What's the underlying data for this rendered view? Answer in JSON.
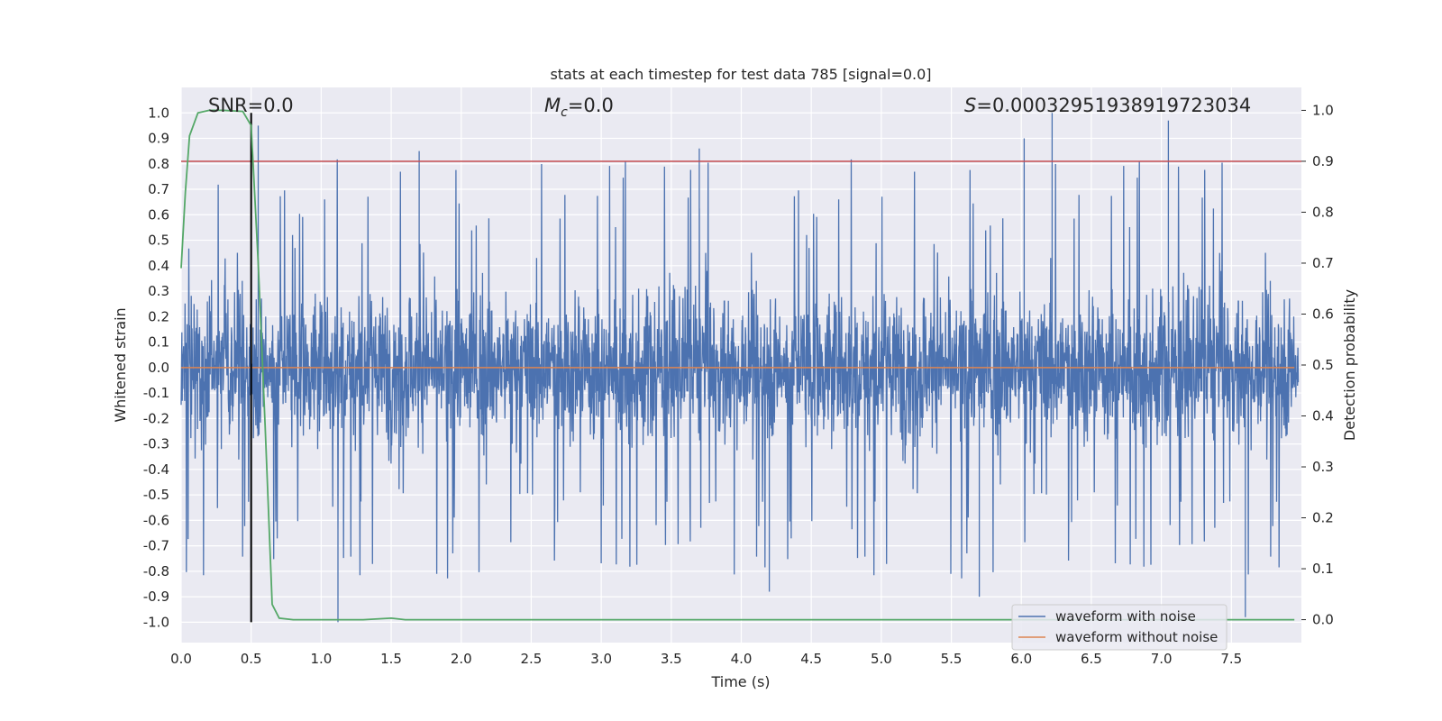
{
  "chart_data": {
    "type": "line",
    "title": "stats at each timestep for test data 785 [signal=0.0]",
    "xlabel": "Time (s)",
    "ylabel": "Whitened strain",
    "ylabel_right": "Detection probability",
    "xlim": [
      0.0,
      8.0
    ],
    "ylim": [
      -1.08,
      1.1
    ],
    "ylim_right": [
      -0.045,
      1.045
    ],
    "grid": true,
    "legend_position": "bottom-right",
    "x_ticks": [
      "0.0",
      "0.5",
      "1.0",
      "1.5",
      "2.0",
      "2.5",
      "3.0",
      "3.5",
      "4.0",
      "4.5",
      "5.0",
      "5.5",
      "6.0",
      "6.5",
      "7.0",
      "7.5"
    ],
    "y_ticks": [
      "1.0",
      "0.9",
      "0.8",
      "0.7",
      "0.6",
      "0.5",
      "0.4",
      "0.3",
      "0.2",
      "0.1",
      "0.0",
      "-0.1",
      "-0.2",
      "-0.3",
      "-0.4",
      "-0.5",
      "-0.6",
      "-0.7",
      "-0.8",
      "-0.9",
      "-1.0"
    ],
    "y_ticks_right": [
      "1.0",
      "0.9",
      "0.8",
      "0.7",
      "0.6",
      "0.5",
      "0.4",
      "0.3",
      "0.2",
      "0.1",
      "0.0"
    ],
    "annotations": {
      "snr": "SNR=0.0",
      "mc_symbol": "M",
      "mc_subscript": "c",
      "mc_value": "=0.0",
      "s_symbol": "S",
      "s_value": "=0.0003295193891972303​4"
    },
    "series": [
      {
        "name": "waveform with noise",
        "axis": "left",
        "color": "#4c72b0",
        "description": "dense whitened noise, amplitude mostly within ±0.4 with spikes reaching about ±1.0",
        "envelope_peaks_upper": [
          [
            0.55,
            0.95
          ],
          [
            1.7,
            0.85
          ],
          [
            3.7,
            0.86
          ],
          [
            6.02,
            0.9
          ],
          [
            6.22,
            1.0
          ],
          [
            7.05,
            0.97
          ]
        ],
        "envelope_peaks_lower": [
          [
            1.12,
            -1.0
          ],
          [
            4.2,
            -0.88
          ],
          [
            5.7,
            -0.9
          ],
          [
            7.6,
            -0.98
          ]
        ]
      },
      {
        "name": "waveform without noise",
        "axis": "left",
        "color": "#dd8452",
        "x": [
          0.0,
          7.95
        ],
        "y": [
          0.0,
          0.0
        ]
      },
      {
        "name": "detection probability",
        "axis": "right",
        "color": "#55a868",
        "x": [
          0.0,
          0.03,
          0.06,
          0.12,
          0.2,
          0.3,
          0.44,
          0.5,
          0.55,
          0.6,
          0.65,
          0.7,
          0.8,
          1.0,
          1.3,
          1.5,
          1.6,
          2.0,
          4.0,
          6.0,
          7.95
        ],
        "y": [
          0.69,
          0.84,
          0.95,
          0.995,
          1.0,
          1.0,
          0.998,
          0.97,
          0.7,
          0.38,
          0.03,
          0.003,
          0.0,
          0.0,
          0.0,
          0.003,
          0.0,
          0.0,
          0.0,
          0.0,
          0.0
        ]
      }
    ],
    "reference_lines": {
      "threshold_right": 0.9,
      "threshold_color": "#c44e52",
      "marker_time": 0.5,
      "marker_color": "#000000"
    }
  }
}
